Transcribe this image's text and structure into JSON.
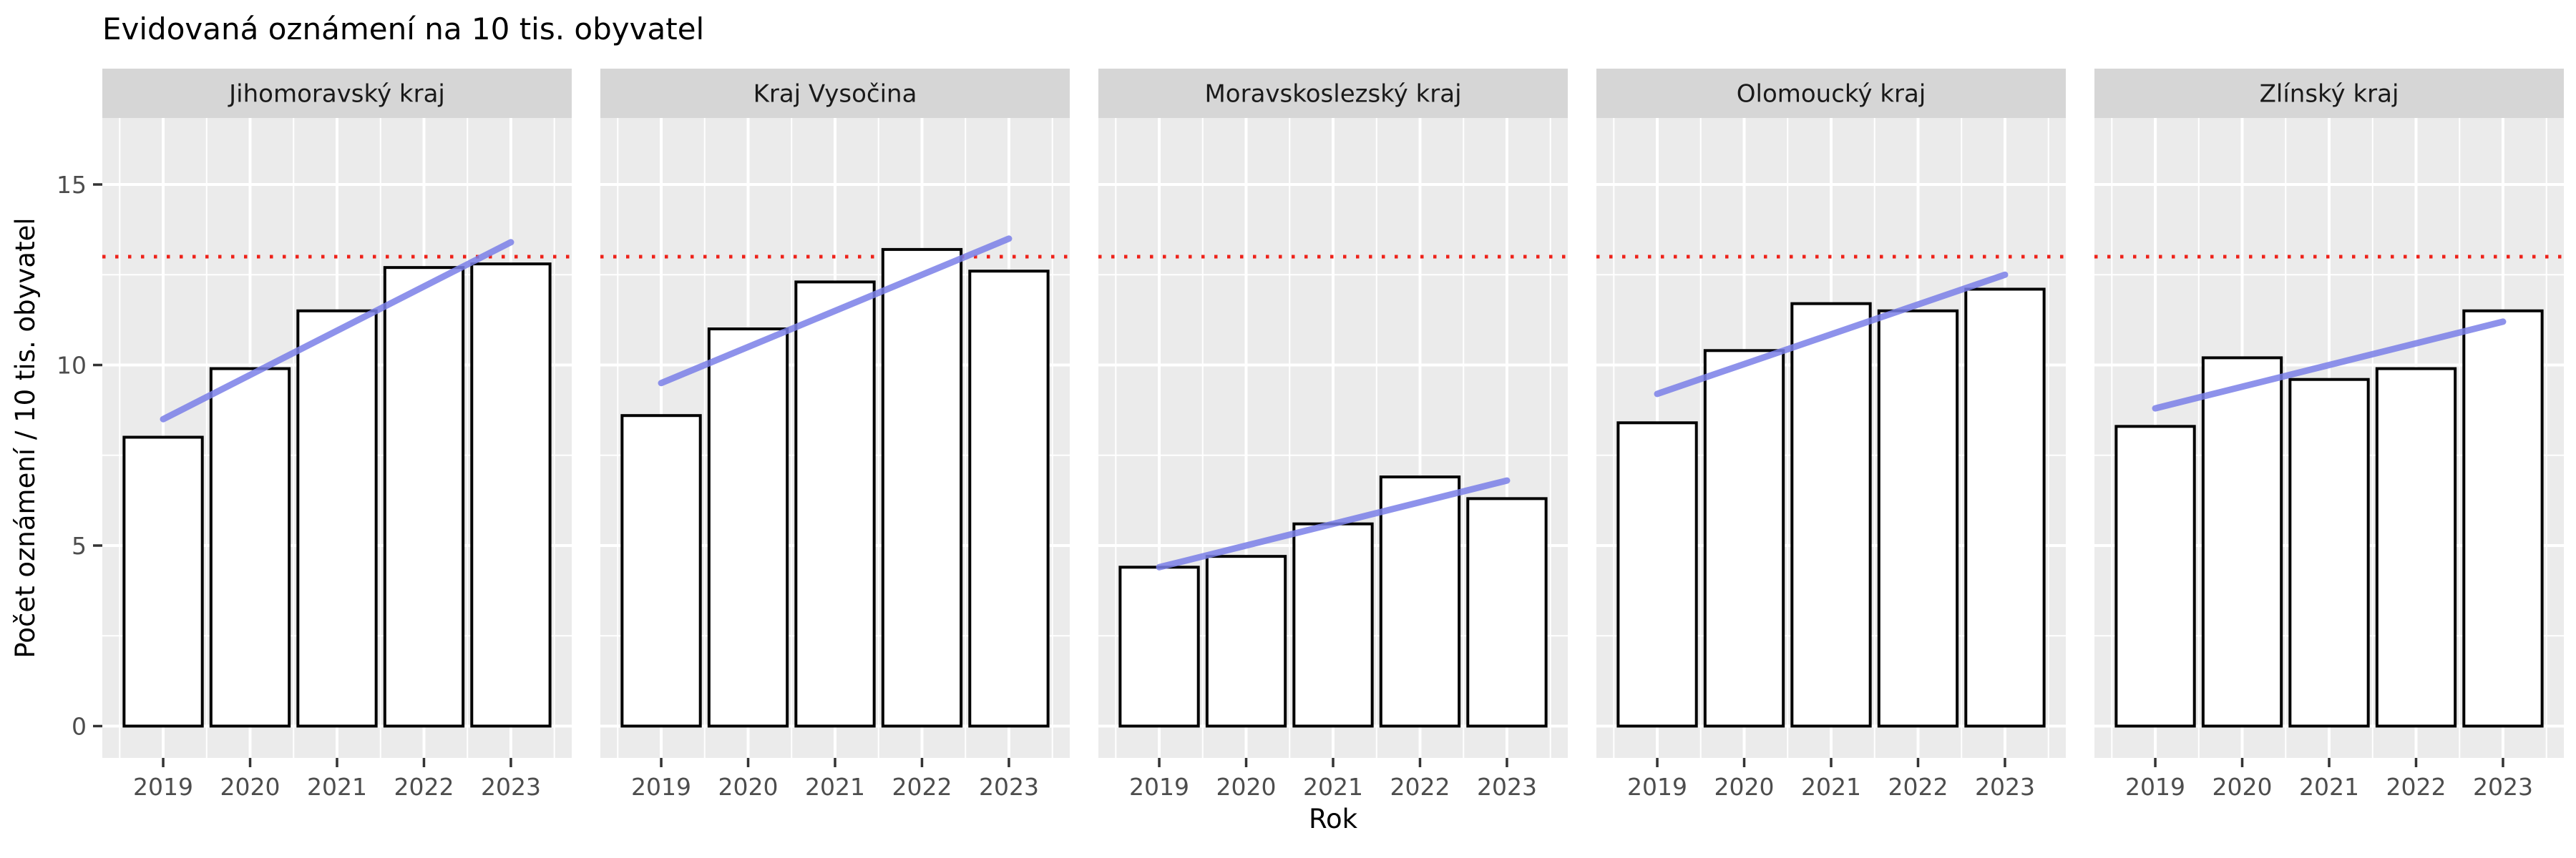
{
  "title": "Evidovaná oznámení na 10 tis. obyvatel",
  "chart_data": {
    "type": "bar",
    "faceted": true,
    "title": "Evidovaná oznámení na 10 tis. obyvatel",
    "xlabel": "Rok",
    "ylabel": "Počet oznámení / 10 tis. obyvatel",
    "categories": [
      2019,
      2020,
      2021,
      2022,
      2023
    ],
    "y_ticks": [
      0,
      5,
      10,
      15
    ],
    "y_minor_ticks": [
      2.5,
      7.5,
      12.5
    ],
    "ylim": [
      -0.9,
      16.85
    ],
    "xlim": [
      2018.3,
      2023.7
    ],
    "grid": true,
    "legend_position": "none",
    "reference_line": {
      "y": 13,
      "style": "dotted",
      "color": "#EE2119"
    },
    "bar_style": {
      "fill": "#FFFFFF",
      "stroke": "#000000",
      "width_fraction": 0.9
    },
    "trend_line_style": {
      "color": "#7B80E8",
      "width": 9
    },
    "facets": [
      {
        "name": "Jihomoravský kraj",
        "values": [
          8.0,
          9.9,
          11.5,
          12.7,
          12.8
        ],
        "trend_start": 8.5,
        "trend_end": 13.4
      },
      {
        "name": "Kraj Vysočina",
        "values": [
          8.6,
          11.0,
          12.3,
          13.2,
          12.6
        ],
        "trend_start": 9.5,
        "trend_end": 13.5
      },
      {
        "name": "Moravskoslezský kraj",
        "values": [
          4.4,
          4.7,
          5.6,
          6.9,
          6.3
        ],
        "trend_start": 4.4,
        "trend_end": 6.8
      },
      {
        "name": "Olomoucký kraj",
        "values": [
          8.4,
          10.4,
          11.7,
          11.5,
          12.1
        ],
        "trend_start": 9.2,
        "trend_end": 12.5
      },
      {
        "name": "Zlínský kraj",
        "values": [
          8.3,
          10.2,
          9.6,
          9.9,
          11.5
        ],
        "trend_start": 8.8,
        "trend_end": 11.2
      }
    ]
  },
  "colors": {
    "panel_background": "#EBEBEB",
    "strip_background": "#D6D6D6",
    "strip_text": "#1A1A1A",
    "gridline": "#FFFFFF",
    "axis_text": "#4D4D4D",
    "axis_title": "#000000",
    "tick_mark": "#333333",
    "bar_fill": "#FFFFFF",
    "bar_stroke": "#000000",
    "trend_line": "#7B80E8",
    "reference_line": "#EE2119"
  }
}
